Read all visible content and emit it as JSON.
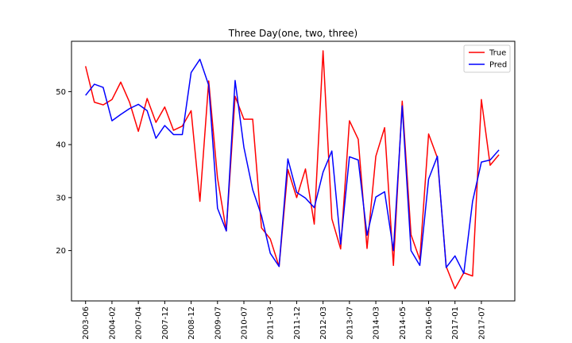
{
  "chart_data": {
    "type": "line",
    "title": "Three Day(one, two, three)",
    "xlabel": "",
    "ylabel": "",
    "ylim": [
      10.5,
      59.5
    ],
    "yticks": [
      20,
      30,
      40,
      50
    ],
    "xtick_labels": [
      "2003-06",
      "2004-02",
      "2007-04",
      "2007-12",
      "2008-12",
      "2009-07",
      "2010-07",
      "2011-03",
      "2011-12",
      "2012-03",
      "2013-07",
      "2014-03",
      "2014-05",
      "2016-06",
      "2017-01",
      "2017-07"
    ],
    "xtick_positions": [
      0,
      3,
      6,
      9,
      12,
      15,
      18,
      21,
      24,
      27,
      30,
      33,
      36,
      39,
      42,
      45
    ],
    "xlim": [
      -1.6,
      48.8
    ],
    "grid": false,
    "legend_position": "top-right",
    "series": [
      {
        "name": "True",
        "color": "#ff0000",
        "values": [
          54.8,
          48.0,
          47.5,
          48.5,
          51.8,
          48.0,
          42.5,
          48.7,
          44.2,
          47.1,
          42.7,
          43.5,
          46.4,
          29.3,
          52.0,
          33.7,
          23.7,
          49.1,
          44.8,
          44.8,
          24.3,
          22.2,
          17.0,
          35.3,
          30.0,
          35.4,
          25.0,
          57.7,
          26.0,
          20.3,
          44.5,
          41.0,
          20.4,
          37.8,
          43.2,
          17.2,
          48.2,
          23.0,
          18.3,
          42.0,
          37.5,
          17.0,
          12.8,
          15.8,
          15.2,
          48.5,
          36.1,
          38.1
        ]
      },
      {
        "name": "Pred",
        "color": "#0000ff",
        "values": [
          49.3,
          51.4,
          50.8,
          44.5,
          45.7,
          46.8,
          47.6,
          46.4,
          41.2,
          43.6,
          41.9,
          41.9,
          53.6,
          56.1,
          51.2,
          28.0,
          23.7,
          52.1,
          39.5,
          31.5,
          26.6,
          19.5,
          17.0,
          37.3,
          31.0,
          29.9,
          28.1,
          34.8,
          38.8,
          21.2,
          37.7,
          37.1,
          22.9,
          30.1,
          31.1,
          20.0,
          47.3,
          20.0,
          17.2,
          33.5,
          37.8,
          16.8,
          19.0,
          15.7,
          29.3,
          36.7,
          37.1,
          39.0
        ]
      }
    ]
  }
}
